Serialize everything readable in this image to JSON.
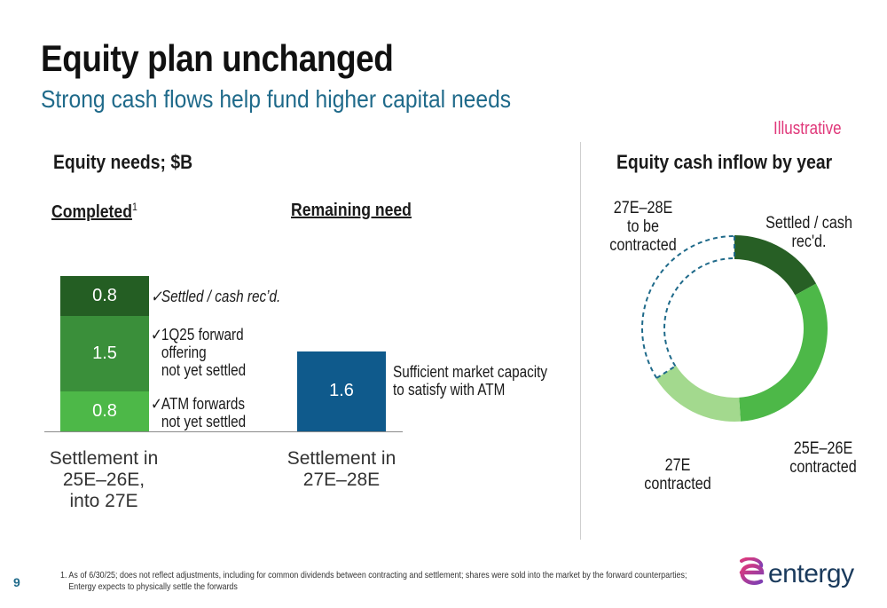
{
  "page": {
    "title": "Equity plan unchanged",
    "subtitle": "Strong cash flows help fund higher capital needs",
    "illustrative": "Illustrative",
    "page_number": "9",
    "footnote_line1": "1. As of 6/30/25; does not reflect adjustments, including for common dividends between contracting and settlement; shares were sold into the market by the forward counterparties;",
    "footnote_line2": "Entergy expects to physically settle the forwards",
    "logo_text": "entergy"
  },
  "left": {
    "heading": "Equity needs; $B",
    "completed_label": "Completed",
    "completed_sup": "1",
    "remaining_label": "Remaining need",
    "notes": {
      "settled": "Settled / cash rec’d.",
      "forward_1": "1Q25 forward",
      "forward_2": "offering",
      "forward_3": "not yet settled",
      "atm_1": "ATM forwards",
      "atm_2": "not yet settled",
      "check": "✓"
    },
    "remaining_note_1": "Sufficient market capacity",
    "remaining_note_2": "to satisfy with ATM",
    "xlabels": {
      "bar1_l1": "Settlement in",
      "bar1_l2": "25E–26E,",
      "bar1_l3": "into 27E",
      "bar2_l1": "Settlement in",
      "bar2_l2": "27E–28E"
    }
  },
  "right": {
    "heading": "Equity cash inflow by year",
    "labels": {
      "settled_1": "Settled / cash",
      "settled_2": "rec'd.",
      "c2526_1": "25E–26E",
      "c2526_2": "contracted",
      "c27_1": "27E",
      "c27_2": "contracted",
      "tbc_1": "27E–28E",
      "tbc_2": "to be",
      "tbc_3": "contracted"
    }
  },
  "chart_data": [
    {
      "type": "bar",
      "stacked": true,
      "unit": "$B",
      "categories": [
        "Settlement in 25E–26E, into 27E",
        "Settlement in 27E–28E"
      ],
      "series": [
        {
          "values": [
            0.8,
            null
          ],
          "color": "#4db848"
        },
        {
          "values": [
            1.5,
            null
          ],
          "color": "#3a8f3a"
        },
        {
          "values": [
            0.8,
            null
          ],
          "color": "#245e23"
        },
        {
          "values": [
            null,
            1.6
          ],
          "color": "#0f5a8c"
        }
      ],
      "data_labels": [
        [
          "0.8",
          "1.5",
          "0.8"
        ],
        [
          "1.6"
        ]
      ]
    },
    {
      "type": "pie",
      "donut": true,
      "slices": [
        {
          "label": "Settled / cash rec'd.",
          "value": 0.8,
          "color": "#275f25",
          "style": "solid"
        },
        {
          "label": "25E–26E contracted",
          "value": 1.5,
          "color": "#4db848",
          "style": "solid"
        },
        {
          "label": "27E contracted",
          "value": 0.8,
          "color": "#a3d98e",
          "style": "solid"
        },
        {
          "label": "27E–28E to be contracted",
          "value": 1.6,
          "color": "#1f6a8a",
          "style": "dashed-outline"
        }
      ]
    }
  ]
}
